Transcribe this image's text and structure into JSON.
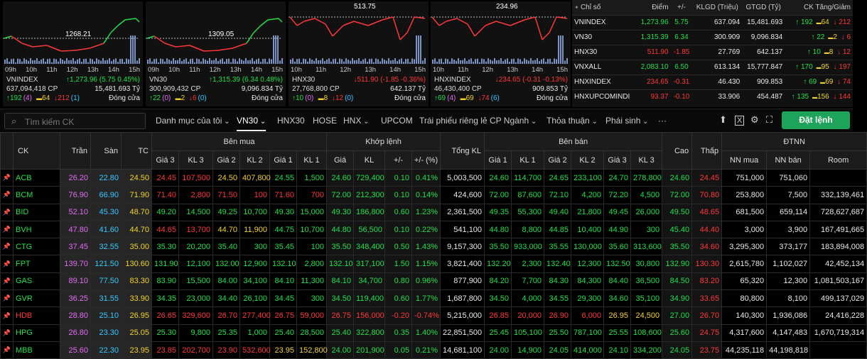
{
  "charts": [
    {
      "name": "VNINDEX",
      "ref_label": "1268.21",
      "peak_label": "",
      "time_axis": [
        "09h",
        "10h",
        "11h",
        "12h",
        "13h",
        "14h",
        "15h"
      ],
      "change_text": "1,273.96 (5.75 0.45%)",
      "volume_text": "637,094,418 CP",
      "value_text": "15,481.693 Tỷ",
      "up": "192",
      "up_ceiling": "(4)",
      "flat": "64",
      "down": "212",
      "down_floor": "(1)",
      "status": "Đóng cửa",
      "trend": "up"
    },
    {
      "name": "VN30",
      "ref_label": "1309.05",
      "peak_label": "",
      "time_axis": [
        "09h",
        "10h",
        "11h",
        "12h",
        "13h",
        "14h",
        "15h"
      ],
      "change_text": "1,315.39 (6.34 0.48%)",
      "volume_text": "300,909,432 CP",
      "value_text": "9,096.834 Tỷ",
      "up": "22",
      "up_ceiling": "(0)",
      "flat": "2",
      "down": "6",
      "down_floor": "(0)",
      "status": "Đóng cửa",
      "trend": "up"
    },
    {
      "name": "HNX30",
      "ref_label": "",
      "peak_label": "513.75",
      "time_axis": [
        "10h",
        "11h",
        "12h",
        "13h",
        "14h",
        "15h"
      ],
      "change_text": "511.90 (-1.85 -0.36%)",
      "volume_text": "27,768,800 CP",
      "value_text": "642.137 Tỷ",
      "up": "10",
      "up_ceiling": "(0)",
      "flat": "8",
      "down": "12",
      "down_floor": "(0)",
      "status": "Đóng cửa",
      "trend": "down"
    },
    {
      "name": "HNXINDEX",
      "ref_label": "",
      "peak_label": "234.96",
      "time_axis": [
        "10h",
        "11h",
        "12h",
        "13h",
        "14h",
        "15h"
      ],
      "change_text": "234.65 (-0.31 -0.13%)",
      "volume_text": "46,430,400 CP",
      "value_text": "909.853 Tỷ",
      "up": "69",
      "up_ceiling": "(4)",
      "flat": "69",
      "down": "74",
      "down_floor": "(6)",
      "status": "Đóng cửa",
      "trend": "down"
    }
  ],
  "index_table": {
    "headers": [
      "Chỉ số",
      "Điểm",
      "+/-",
      "KLGD (Triệu)",
      "GTGD (Tỷ)",
      "CK Tăng/Giảm"
    ],
    "rows": [
      {
        "name": "VNINDEX",
        "point": "1,273.96",
        "chg": "5.75",
        "vol": "637.094",
        "val": "15,481.693",
        "up": "192",
        "flat": "64",
        "down": "212",
        "color": "g"
      },
      {
        "name": "VN30",
        "point": "1,315.39",
        "chg": "6.34",
        "vol": "300.909",
        "val": "9,096.834",
        "up": "22",
        "flat": "2",
        "down": "6",
        "color": "g"
      },
      {
        "name": "HNX30",
        "point": "511.90",
        "chg": "-1.85",
        "vol": "27.769",
        "val": "642.137",
        "up": "10",
        "flat": "8",
        "down": "12",
        "color": "r"
      },
      {
        "name": "VNXALL",
        "point": "2,083.10",
        "chg": "6.50",
        "vol": "613.134",
        "val": "15,777.847",
        "up": "170",
        "flat": "95",
        "down": "197",
        "color": "g"
      },
      {
        "name": "HNXINDEX",
        "point": "234.65",
        "chg": "-0.31",
        "vol": "46.430",
        "val": "909.853",
        "up": "69",
        "flat": "69",
        "down": "74",
        "color": "r"
      },
      {
        "name": "HNXUPCOMINDI",
        "point": "93.37",
        "chg": "-0.10",
        "vol": "33.906",
        "val": "454.487",
        "up": "135",
        "flat": "156",
        "down": "144",
        "color": "r"
      }
    ]
  },
  "toolbar": {
    "search_placeholder": "Tìm kiếm CK",
    "tabs": [
      "Danh mục của tôi",
      "VN30",
      "HNX30",
      "HOSE",
      "HNX",
      "UPCOM",
      "Trái phiếu riêng lẻ",
      "CP Ngành",
      "Thỏa thuận",
      "Phái sinh",
      "···"
    ],
    "order_label": "Đặt lệnh"
  },
  "board": {
    "group_headers": {
      "buy": "Bên mua",
      "match": "Khớp lệnh",
      "sell": "Bên bán",
      "foreign": "ĐTNN"
    },
    "headers": {
      "ck": "CK",
      "ceil": "Trần",
      "floor": "Sàn",
      "ref": "TC",
      "p3": "Giá 3",
      "v3": "KL 3",
      "p2": "Giá 2",
      "v2": "KL 2",
      "p1": "Giá 1",
      "v1": "KL 1",
      "mp": "Giá",
      "mv": "KL",
      "chg": "+/-",
      "pct": "+/- (%)",
      "total": "Tổng KL",
      "high": "Cao",
      "low": "Thấp",
      "fbuy": "NN mua",
      "fsell": "NN bán",
      "room": "Room"
    },
    "rows": [
      {
        "ck": "ACB",
        "ceil": "26.20",
        "floor": "22.80",
        "ref": "24.50",
        "b3": "24.45",
        "bv3": "107,500",
        "b2": "24.50",
        "bv2": "407,800",
        "b1": "24.55",
        "bv1": "1,500",
        "mp": "24.60",
        "mv": "729,400",
        "chg": "0.10",
        "pct": "0.41%",
        "total": "5,003,500",
        "s1": "24.60",
        "sv1": "114,700",
        "s2": "24.65",
        "sv2": "233,100",
        "s3": "24.70",
        "sv3": "278,800",
        "high": "24.60",
        "low": "24.45",
        "fbuy": "751,000",
        "fsell": "751,060",
        "room": ""
      },
      {
        "ck": "BCM",
        "ceil": "76.90",
        "floor": "66.90",
        "ref": "71.90",
        "b3": "71.40",
        "bv3": "2,800",
        "b2": "71.50",
        "bv2": "100",
        "b1": "71.60",
        "bv1": "700",
        "mp": "72.00",
        "mv": "212,300",
        "chg": "0.10",
        "pct": "0.14%",
        "total": "424,600",
        "s1": "72.00",
        "sv1": "87,600",
        "s2": "72.10",
        "sv2": "4,200",
        "s3": "72.20",
        "sv3": "4,500",
        "high": "72.00",
        "low": "70.80",
        "fbuy": "253,800",
        "fsell": "7,500",
        "room": "332,139,461"
      },
      {
        "ck": "BID",
        "ceil": "52.10",
        "floor": "45.30",
        "ref": "48.70",
        "b3": "49.20",
        "bv3": "14,500",
        "b2": "49.25",
        "bv2": "10,700",
        "b1": "49.30",
        "bv1": "15,000",
        "mp": "49.30",
        "mv": "186,800",
        "chg": "0.60",
        "pct": "1.23%",
        "total": "2,361,500",
        "s1": "49.35",
        "sv1": "55,300",
        "s2": "49.40",
        "sv2": "21,800",
        "s3": "49.45",
        "sv3": "26,000",
        "high": "49.50",
        "low": "48.65",
        "fbuy": "681,500",
        "fsell": "659,114",
        "room": "728,627,687"
      },
      {
        "ck": "BVH",
        "ceil": "47.80",
        "floor": "41.60",
        "ref": "44.70",
        "b3": "44.65",
        "bv3": "13,700",
        "b2": "44.70",
        "bv2": "11,900",
        "b1": "44.75",
        "bv1": "10,700",
        "mp": "44.80",
        "mv": "56,500",
        "chg": "0.10",
        "pct": "0.22%",
        "total": "541,100",
        "s1": "44.80",
        "sv1": "8,800",
        "s2": "44.85",
        "sv2": "10,400",
        "s3": "44.90",
        "sv3": "300",
        "high": "45.40",
        "low": "44.40",
        "fbuy": "3,000",
        "fsell": "3,900",
        "room": "167,491,665"
      },
      {
        "ck": "CTG",
        "ceil": "37.45",
        "floor": "32.55",
        "ref": "35.00",
        "b3": "35.30",
        "bv3": "20,200",
        "b2": "35.40",
        "bv2": "300",
        "b1": "35.45",
        "bv1": "100",
        "mp": "35.50",
        "mv": "348,400",
        "chg": "0.50",
        "pct": "1.43%",
        "total": "9,157,300",
        "s1": "35.50",
        "sv1": "933,000",
        "s2": "35.55",
        "sv2": "130,000",
        "s3": "35.60",
        "sv3": "313,600",
        "high": "35.50",
        "low": "34.60",
        "fbuy": "3,295,300",
        "fsell": "373,177",
        "room": "183,894,008"
      },
      {
        "ck": "FPT",
        "ceil": "139.70",
        "floor": "121.50",
        "ref": "130.60",
        "b3": "131.90",
        "bv3": "12,100",
        "b2": "132.00",
        "bv2": "12,900",
        "b1": "132.10",
        "bv1": "2,800",
        "mp": "132.10",
        "mv": "317,100",
        "chg": "1.50",
        "pct": "1.15%",
        "total": "3,821,400",
        "s1": "132.20",
        "sv1": "2,300",
        "s2": "132.40",
        "sv2": "12,300",
        "s3": "132.50",
        "sv3": "30,800",
        "high": "132.90",
        "low": "130.30",
        "fbuy": "2,615,780",
        "fsell": "1,102,027",
        "room": "42,452,134"
      },
      {
        "ck": "GAS",
        "ceil": "89.10",
        "floor": "77.50",
        "ref": "83.30",
        "b3": "83.90",
        "bv3": "15,500",
        "b2": "84.00",
        "bv2": "34,100",
        "b1": "84.10",
        "bv1": "11,300",
        "mp": "84.10",
        "mv": "34,700",
        "chg": "0.80",
        "pct": "0.96%",
        "total": "877,900",
        "s1": "84.20",
        "sv1": "7,700",
        "s2": "84.30",
        "sv2": "84,300",
        "s3": "84.40",
        "sv3": "36,500",
        "high": "84.50",
        "low": "83.20",
        "fbuy": "65,320",
        "fsell": "12,300",
        "room": "1,081,503,167"
      },
      {
        "ck": "GVR",
        "ceil": "36.25",
        "floor": "31.55",
        "ref": "33.90",
        "b3": "34.35",
        "bv3": "23,000",
        "b2": "34.40",
        "bv2": "26,100",
        "b1": "34.45",
        "bv1": "300",
        "mp": "34.50",
        "mv": "119,400",
        "chg": "0.60",
        "pct": "1.77%",
        "total": "1,687,800",
        "s1": "34.50",
        "sv1": "4,000",
        "s2": "34.55",
        "sv2": "29,300",
        "s3": "34.60",
        "sv3": "35,100",
        "high": "34.90",
        "low": "33.65",
        "fbuy": "80,800",
        "fsell": "8,100",
        "room": "499,137,029"
      },
      {
        "ck": "HDB",
        "ceil": "28.80",
        "floor": "25.10",
        "ref": "26.95",
        "b3": "26.65",
        "bv3": "329,600",
        "b2": "26.70",
        "bv2": "277,400",
        "b1": "26.75",
        "bv1": "59,000",
        "mp": "26.75",
        "mv": "156,000",
        "chg": "-0.20",
        "pct": "-0.74%",
        "total": "5,215,000",
        "s1": "26.85",
        "sv1": "20,000",
        "s2": "26.90",
        "sv2": "6,000",
        "s3": "26.95",
        "sv3": "24,500",
        "high": "27.00",
        "low": "26.70",
        "fbuy": "140,300",
        "fsell": "1,936,086",
        "room": "24,416,228"
      },
      {
        "ck": "HPG",
        "ceil": "26.80",
        "floor": "23.30",
        "ref": "25.05",
        "b3": "25.30",
        "bv3": "9,800",
        "b2": "25.35",
        "bv2": "1,000",
        "b1": "25.40",
        "bv1": "28,500",
        "mp": "25.40",
        "mv": "322,800",
        "chg": "0.35",
        "pct": "1.40%",
        "total": "22,851,500",
        "s1": "25.45",
        "sv1": "105,100",
        "s2": "25.50",
        "sv2": "787,100",
        "s3": "25.55",
        "sv3": "108,600",
        "high": "25.60",
        "low": "24.75",
        "fbuy": "4,317,600",
        "fsell": "4,147,483",
        "room": "1,670,719,314"
      },
      {
        "ck": "MBB",
        "ceil": "25.60",
        "floor": "22.30",
        "ref": "23.95",
        "b3": "23.85",
        "bv3": "202,700",
        "b2": "23.90",
        "bv2": "532,600",
        "b1": "23.95",
        "bv1": "152,800",
        "mp": "24.00",
        "mv": "201,900",
        "chg": "0.05",
        "pct": "0.21%",
        "total": "14,681,100",
        "s1": "24.00",
        "sv1": "14,900",
        "s2": "24.05",
        "sv2": "414,000",
        "s3": "24.10",
        "sv3": "334,200",
        "high": "24.05",
        "low": "23.75",
        "fbuy": "44,235,118",
        "fsell": "44,198,818",
        "room": ""
      }
    ]
  }
}
